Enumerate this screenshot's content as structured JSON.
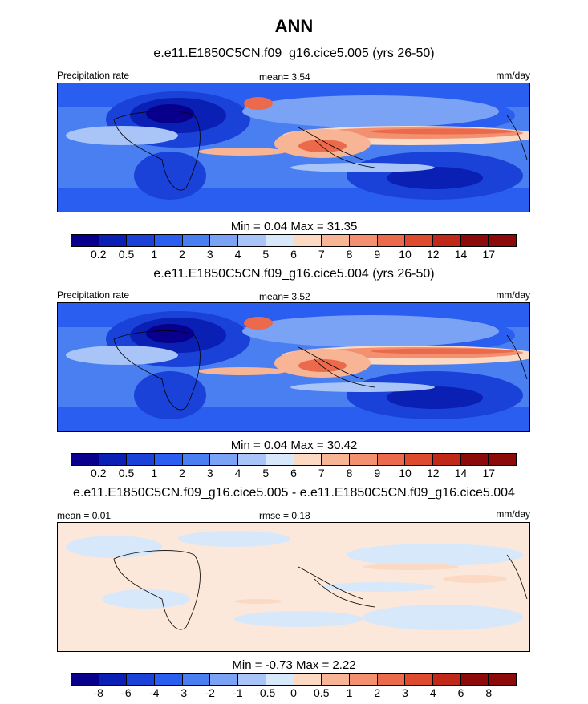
{
  "figure_title": "ANN",
  "panels": [
    {
      "case": "e.e11.E1850C5CN.f09_g16.cice5.005 (yrs 26-50)",
      "left_label": "Precipitation rate",
      "center_label": "mean=   3.54",
      "units": "mm/day",
      "stats": "Min =   0.04 Max =  31.35",
      "levels": [
        "0.2",
        "0.5",
        "1",
        "2",
        "3",
        "4",
        "5",
        "6",
        "7",
        "8",
        "9",
        "10",
        "12",
        "14",
        "17"
      ]
    },
    {
      "case": "e.e11.E1850C5CN.f09_g16.cice5.004 (yrs 26-50)",
      "left_label": "Precipitation rate",
      "center_label": "mean=   3.52",
      "units": "mm/day",
      "stats": "Min =   0.04 Max =  30.42",
      "levels": [
        "0.2",
        "0.5",
        "1",
        "2",
        "3",
        "4",
        "5",
        "6",
        "7",
        "8",
        "9",
        "10",
        "12",
        "14",
        "17"
      ]
    },
    {
      "case": "e.e11.E1850C5CN.f09_g16.cice5.005 - e.e11.E1850C5CN.f09_g16.cice5.004",
      "left_label": "mean =   0.01",
      "center_label": "rmse =   0.18",
      "units": "mm/day",
      "stats": "Min =  -0.73 Max =   2.22",
      "levels": [
        "-8",
        "-6",
        "-4",
        "-3",
        "-2",
        "-1",
        "-0.5",
        "0",
        "0.5",
        "1",
        "2",
        "3",
        "4",
        "6",
        "8"
      ]
    }
  ],
  "colors": {
    "palette": [
      "#08008c",
      "#0a20b4",
      "#1a42d8",
      "#2a5ef0",
      "#4a7ff2",
      "#7aa3f5",
      "#a9c5f8",
      "#d8e8fb",
      "#fbd9c3",
      "#f8b596",
      "#f29070",
      "#eb6a4c",
      "#dd4a2e",
      "#c0281a",
      "#8c0a0a"
    ],
    "diff_background": "#fbe8da",
    "coast": "#000000"
  },
  "chart_data": [
    {
      "type": "heatmap",
      "title": "e.e11.E1850C5CN.f09_g16.cice5.005 (yrs 26-50)",
      "variable": "Precipitation rate",
      "units": "mm/day",
      "mean": 3.54,
      "min": 0.04,
      "max": 31.35,
      "contour_levels": [
        0.2,
        0.5,
        1,
        2,
        3,
        4,
        5,
        6,
        7,
        8,
        9,
        10,
        12,
        14,
        17
      ]
    },
    {
      "type": "heatmap",
      "title": "e.e11.E1850C5CN.f09_g16.cice5.004 (yrs 26-50)",
      "variable": "Precipitation rate",
      "units": "mm/day",
      "mean": 3.52,
      "min": 0.04,
      "max": 30.42,
      "contour_levels": [
        0.2,
        0.5,
        1,
        2,
        3,
        4,
        5,
        6,
        7,
        8,
        9,
        10,
        12,
        14,
        17
      ]
    },
    {
      "type": "heatmap",
      "title": "e.e11.E1850C5CN.f09_g16.cice5.005 - e.e11.E1850C5CN.f09_g16.cice5.004",
      "units": "mm/day",
      "mean": 0.01,
      "rmse": 0.18,
      "min": -0.73,
      "max": 2.22,
      "contour_levels": [
        -8,
        -6,
        -4,
        -3,
        -2,
        -1,
        -0.5,
        0,
        0.5,
        1,
        2,
        3,
        4,
        6,
        8
      ]
    }
  ]
}
